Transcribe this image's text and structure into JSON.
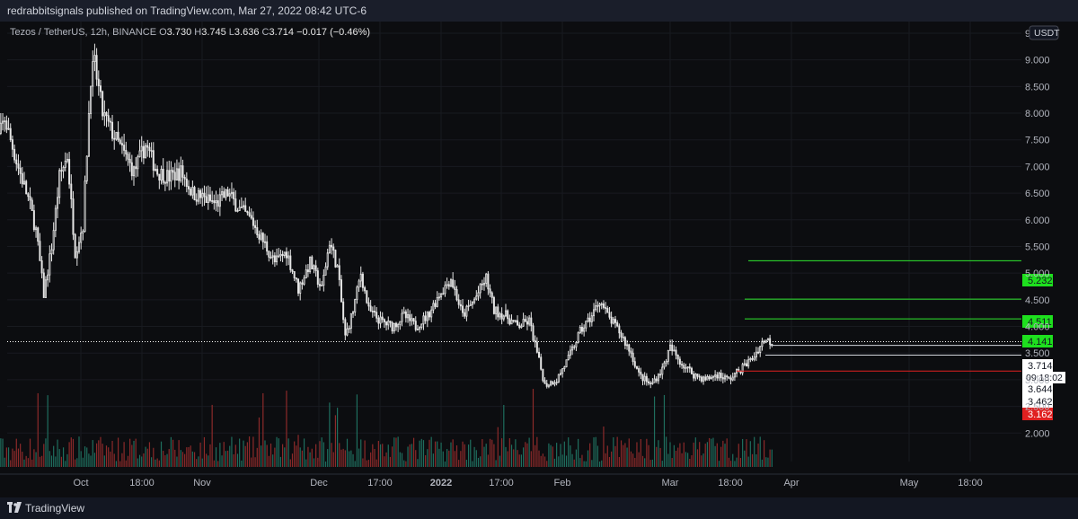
{
  "header": {
    "published": "redrabbitsignals published on TradingView.com, Mar 27, 2022 08:42 UTC-6"
  },
  "legend": {
    "symbol": "Tezos / TetherUS, 12h, BINANCE",
    "o_label": "O",
    "o_val": "3.730",
    "h_label": "H",
    "h_val": "3.745",
    "l_label": "L",
    "l_val": "3.636",
    "c_label": "C",
    "c_val": "3.714",
    "change": "−0.017 (−0.46%)"
  },
  "footer": {
    "brand": "TradingView",
    "logo_icon": "tradingview-logo-icon"
  },
  "chart_data": {
    "type": "candlestick",
    "currency": "USDT",
    "ylim": [
      1.6,
      9.5
    ],
    "y_ticks": [
      "9.500",
      "9.000",
      "8.500",
      "8.000",
      "7.500",
      "7.000",
      "6.500",
      "6.000",
      "5.500",
      "5.000",
      "4.500",
      "4.000",
      "3.500",
      "3.000",
      "2.500",
      "2.000"
    ],
    "x_ticks": [
      "Oct",
      "18:00",
      "Nov",
      "Dec",
      "17:00",
      "2022",
      "17:00",
      "Feb",
      "Mar",
      "18:00",
      "Apr",
      "May",
      "18:00"
    ],
    "x_bold_ticks": [
      "2022"
    ],
    "close_path": [
      [
        "2021-09-09",
        7.2
      ],
      [
        "2021-09-12",
        7.9
      ],
      [
        "2021-09-15",
        7.1
      ],
      [
        "2021-09-18",
        6.4
      ],
      [
        "2021-09-20",
        5.8
      ],
      [
        "2021-09-22",
        4.6
      ],
      [
        "2021-09-24",
        5.5
      ],
      [
        "2021-09-26",
        6.8
      ],
      [
        "2021-09-28",
        7.2
      ],
      [
        "2021-09-30",
        5.4
      ],
      [
        "2021-10-02",
        5.9
      ],
      [
        "2021-10-04",
        8.7
      ],
      [
        "2021-10-05",
        8.9
      ],
      [
        "2021-10-07",
        8.0
      ],
      [
        "2021-10-09",
        7.7
      ],
      [
        "2021-10-12",
        7.3
      ],
      [
        "2021-10-15",
        6.9
      ],
      [
        "2021-10-18",
        7.4
      ],
      [
        "2021-10-21",
        6.9
      ],
      [
        "2021-10-24",
        6.8
      ],
      [
        "2021-10-27",
        6.9
      ],
      [
        "2021-10-30",
        6.5
      ],
      [
        "2021-11-02",
        6.4
      ],
      [
        "2021-11-05",
        6.3
      ],
      [
        "2021-11-08",
        6.5
      ],
      [
        "2021-11-11",
        6.2
      ],
      [
        "2021-11-14",
        6.0
      ],
      [
        "2021-11-17",
        5.6
      ],
      [
        "2021-11-20",
        5.2
      ],
      [
        "2021-11-23",
        5.4
      ],
      [
        "2021-11-26",
        4.7
      ],
      [
        "2021-11-29",
        5.2
      ],
      [
        "2021-12-02",
        4.7
      ],
      [
        "2021-12-04",
        5.6
      ],
      [
        "2021-12-06",
        5.1
      ],
      [
        "2021-12-08",
        3.8
      ],
      [
        "2021-12-10",
        4.3
      ],
      [
        "2021-12-12",
        5.0
      ],
      [
        "2021-12-14",
        4.3
      ],
      [
        "2021-12-17",
        4.1
      ],
      [
        "2021-12-20",
        4.0
      ],
      [
        "2021-12-23",
        4.2
      ],
      [
        "2021-12-26",
        4.0
      ],
      [
        "2021-12-29",
        4.2
      ],
      [
        "2022-01-01",
        4.6
      ],
      [
        "2022-01-04",
        4.9
      ],
      [
        "2022-01-07",
        4.2
      ],
      [
        "2022-01-10",
        4.5
      ],
      [
        "2022-01-13",
        4.9
      ],
      [
        "2022-01-15",
        4.3
      ],
      [
        "2022-01-18",
        4.2
      ],
      [
        "2022-01-21",
        4.0
      ],
      [
        "2022-01-24",
        4.1
      ],
      [
        "2022-01-26",
        3.5
      ],
      [
        "2022-01-28",
        2.9
      ],
      [
        "2022-01-31",
        3.0
      ],
      [
        "2022-02-03",
        3.4
      ],
      [
        "2022-02-06",
        3.9
      ],
      [
        "2022-02-09",
        4.2
      ],
      [
        "2022-02-11",
        4.5
      ],
      [
        "2022-02-13",
        4.2
      ],
      [
        "2022-02-16",
        3.9
      ],
      [
        "2022-02-19",
        3.5
      ],
      [
        "2022-02-21",
        3.1
      ],
      [
        "2022-02-24",
        2.9
      ],
      [
        "2022-02-27",
        3.2
      ],
      [
        "2022-03-01",
        3.6
      ],
      [
        "2022-03-04",
        3.3
      ],
      [
        "2022-03-07",
        3.1
      ],
      [
        "2022-03-10",
        3.0
      ],
      [
        "2022-03-13",
        3.1
      ],
      [
        "2022-03-16",
        3.0
      ],
      [
        "2022-03-19",
        3.2
      ],
      [
        "2022-03-22",
        3.4
      ],
      [
        "2022-03-25",
        3.75
      ],
      [
        "2022-03-27",
        3.714
      ]
    ],
    "horizontal_levels": [
      {
        "label": "5.232",
        "value": 5.232,
        "color": "#2ee82e",
        "style": "solid"
      },
      {
        "label": "4.511",
        "value": 4.511,
        "color": "#2ee82e",
        "style": "solid"
      },
      {
        "label": "4.141",
        "value": 4.141,
        "color": "#2ee82e",
        "style": "solid"
      },
      {
        "label": "3.714",
        "value": 3.714,
        "color": "#ffffff",
        "style": "dotted",
        "sublabel": "09:18:02"
      },
      {
        "label": "3.644",
        "value": 3.644,
        "color": "#d1d4dc",
        "style": "solid"
      },
      {
        "label": "3.462",
        "value": 3.462,
        "color": "#d1d4dc",
        "style": "solid"
      },
      {
        "label": "3.162",
        "value": 3.162,
        "color": "#e02020",
        "style": "solid"
      }
    ],
    "colors": {
      "candle": "#e6e6e6",
      "vol_up": "#1f6e5e",
      "vol_down": "#8c2a2a",
      "grid": "#181a20",
      "background": "#0c0d10"
    }
  }
}
